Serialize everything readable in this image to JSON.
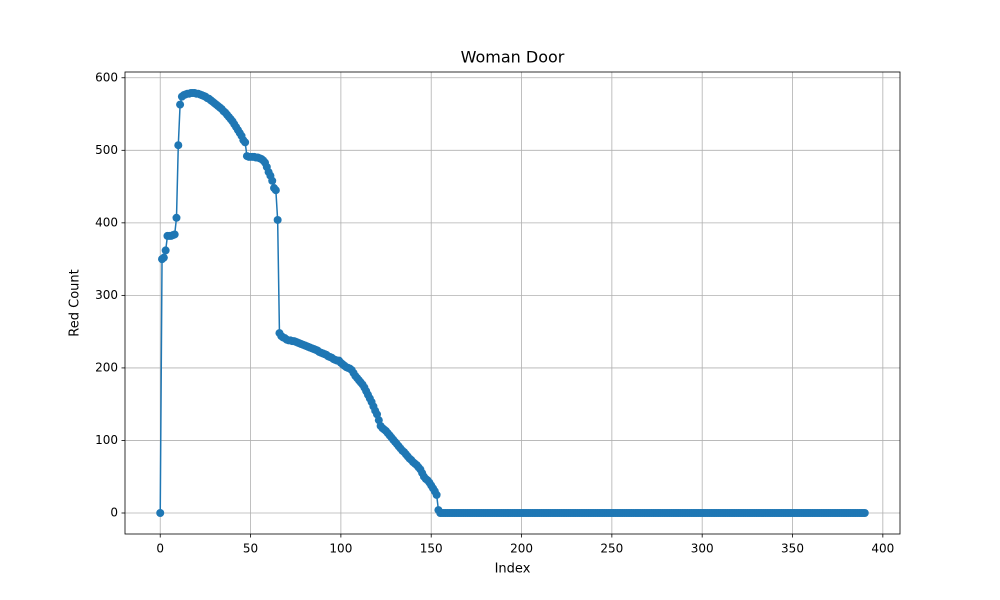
{
  "chart_data": {
    "type": "line",
    "title": "Woman Door",
    "x_label": "Index",
    "y_label": "Red Count",
    "color": "#1f77b4",
    "grid": true,
    "marker": "o",
    "xlim": [
      -19.5,
      409.5
    ],
    "ylim": [
      -28.95,
      607.95
    ],
    "xticks": [
      0,
      50,
      100,
      150,
      200,
      250,
      300,
      350,
      400
    ],
    "yticks": [
      0,
      100,
      200,
      300,
      400,
      500,
      600
    ],
    "x": [
      0,
      1,
      2,
      3,
      4,
      5,
      6,
      7,
      8,
      9,
      10,
      11,
      12,
      13,
      14,
      15,
      16,
      17,
      18,
      19,
      20,
      21,
      22,
      23,
      24,
      25,
      26,
      27,
      28,
      29,
      30,
      31,
      32,
      33,
      34,
      35,
      36,
      37,
      38,
      39,
      40,
      41,
      42,
      43,
      44,
      45,
      46,
      47,
      48,
      49,
      50,
      51,
      52,
      53,
      54,
      55,
      56,
      57,
      58,
      59,
      60,
      61,
      62,
      63,
      64,
      65,
      66,
      67,
      68,
      69,
      70,
      71,
      72,
      73,
      74,
      75,
      76,
      77,
      78,
      79,
      80,
      81,
      82,
      83,
      84,
      85,
      86,
      87,
      88,
      89,
      90,
      91,
      92,
      93,
      94,
      95,
      96,
      97,
      98,
      99,
      100,
      101,
      102,
      103,
      104,
      105,
      106,
      107,
      108,
      109,
      110,
      111,
      112,
      113,
      114,
      115,
      116,
      117,
      118,
      119,
      120,
      121,
      122,
      123,
      124,
      125,
      126,
      127,
      128,
      129,
      130,
      131,
      132,
      133,
      134,
      135,
      136,
      137,
      138,
      139,
      140,
      141,
      142,
      143,
      144,
      145,
      146,
      147,
      148,
      149,
      150,
      151,
      152,
      153,
      154,
      155,
      156,
      157,
      158,
      159,
      160,
      161,
      162,
      163,
      164,
      165,
      166,
      167,
      168,
      169,
      170,
      171,
      172,
      173,
      174,
      175,
      176,
      177,
      178,
      179,
      180,
      181,
      182,
      183,
      184,
      185,
      186,
      187,
      188,
      189,
      190,
      191,
      192,
      193,
      194,
      195,
      196,
      197,
      198,
      199,
      200,
      201,
      202,
      203,
      204,
      205,
      206,
      207,
      208,
      209,
      210,
      211,
      212,
      213,
      214,
      215,
      216,
      217,
      218,
      219,
      220,
      221,
      222,
      223,
      224,
      225,
      226,
      227,
      228,
      229,
      230,
      231,
      232,
      233,
      234,
      235,
      236,
      237,
      238,
      239,
      240,
      241,
      242,
      243,
      244,
      245,
      246,
      247,
      248,
      249,
      250,
      251,
      252,
      253,
      254,
      255,
      256,
      257,
      258,
      259,
      260,
      261,
      262,
      263,
      264,
      265,
      266,
      267,
      268,
      269,
      270,
      271,
      272,
      273,
      274,
      275,
      276,
      277,
      278,
      279,
      280,
      281,
      282,
      283,
      284,
      285,
      286,
      287,
      288,
      289,
      290,
      291,
      292,
      293,
      294,
      295,
      296,
      297,
      298,
      299,
      300,
      301,
      302,
      303,
      304,
      305,
      306,
      307,
      308,
      309,
      310,
      311,
      312,
      313,
      314,
      315,
      316,
      317,
      318,
      319,
      320,
      321,
      322,
      323,
      324,
      325,
      326,
      327,
      328,
      329,
      330,
      331,
      332,
      333,
      334,
      335,
      336,
      337,
      338,
      339,
      340,
      341,
      342,
      343,
      344,
      345,
      346,
      347,
      348,
      349,
      350,
      351,
      352,
      353,
      354,
      355,
      356,
      357,
      358,
      359,
      360,
      361,
      362,
      363,
      364,
      365,
      366,
      367,
      368,
      369,
      370,
      371,
      372,
      373,
      374,
      375,
      376,
      377,
      378,
      379,
      380,
      381,
      382,
      383,
      384,
      385,
      386,
      387,
      388,
      389,
      390
    ],
    "values": [
      0,
      350,
      352,
      362,
      382,
      382,
      382,
      383,
      384,
      407,
      507,
      563,
      574,
      576,
      577,
      578,
      578,
      579,
      579,
      579,
      578,
      578,
      577,
      576,
      575,
      574,
      572,
      571,
      569,
      567,
      565,
      563,
      561,
      559,
      557,
      554,
      552,
      549,
      546,
      543,
      540,
      536,
      532,
      528,
      524,
      520,
      514,
      511,
      492,
      491,
      491,
      491,
      491,
      490,
      490,
      489,
      488,
      486,
      483,
      477,
      470,
      465,
      458,
      448,
      445,
      404,
      248,
      244,
      242,
      241,
      239,
      238,
      238,
      237,
      237,
      236,
      235,
      234,
      233,
      232,
      231,
      230,
      229,
      228,
      227,
      226,
      225,
      224,
      222,
      221,
      220,
      219,
      218,
      216,
      215,
      214,
      212,
      211,
      210,
      210,
      207,
      205,
      203,
      201,
      200,
      199,
      197,
      193,
      189,
      186,
      183,
      180,
      177,
      173,
      168,
      163,
      158,
      153,
      147,
      141,
      136,
      128,
      120,
      117,
      115,
      113,
      110,
      107,
      104,
      101,
      98,
      95,
      92,
      89,
      86,
      84,
      81,
      78,
      75,
      73,
      70,
      68,
      66,
      63,
      60,
      55,
      50,
      47,
      45,
      42,
      38,
      34,
      30,
      25,
      4,
      0,
      0,
      0,
      0,
      0,
      0,
      0,
      0,
      0,
      0,
      0,
      0,
      0,
      0,
      0,
      0,
      0,
      0,
      0,
      0,
      0,
      0,
      0,
      0,
      0,
      0,
      0,
      0,
      0,
      0,
      0,
      0,
      0,
      0,
      0,
      0,
      0,
      0,
      0,
      0,
      0,
      0,
      0,
      0,
      0,
      0,
      0,
      0,
      0,
      0,
      0,
      0,
      0,
      0,
      0,
      0,
      0,
      0,
      0,
      0,
      0,
      0,
      0,
      0,
      0,
      0,
      0,
      0,
      0,
      0,
      0,
      0,
      0,
      0,
      0,
      0,
      0,
      0,
      0,
      0,
      0,
      0,
      0,
      0,
      0,
      0,
      0,
      0,
      0,
      0,
      0,
      0,
      0,
      0,
      0,
      0,
      0,
      0,
      0,
      0,
      0,
      0,
      0,
      0,
      0,
      0,
      0,
      0,
      0,
      0,
      0,
      0,
      0,
      0,
      0,
      0,
      0,
      0,
      0,
      0,
      0,
      0,
      0,
      0,
      0,
      0,
      0,
      0,
      0,
      0,
      0,
      0,
      0,
      0,
      0,
      0,
      0,
      0,
      0,
      0,
      0,
      0,
      0,
      0,
      0,
      0,
      0,
      0,
      0,
      0,
      0,
      0,
      0,
      0,
      0,
      0,
      0,
      0,
      0,
      0,
      0,
      0,
      0,
      0,
      0,
      0,
      0,
      0,
      0,
      0,
      0,
      0,
      0,
      0,
      0,
      0,
      0,
      0,
      0,
      0,
      0,
      0,
      0,
      0,
      0,
      0,
      0,
      0,
      0,
      0,
      0,
      0,
      0,
      0,
      0,
      0,
      0,
      0,
      0,
      0,
      0,
      0,
      0,
      0,
      0,
      0,
      0,
      0,
      0,
      0,
      0,
      0,
      0,
      0,
      0,
      0,
      0,
      0,
      0,
      0,
      0,
      0,
      0,
      0,
      0,
      0,
      0,
      0,
      0,
      0,
      0,
      0,
      0,
      0,
      0,
      0
    ]
  }
}
